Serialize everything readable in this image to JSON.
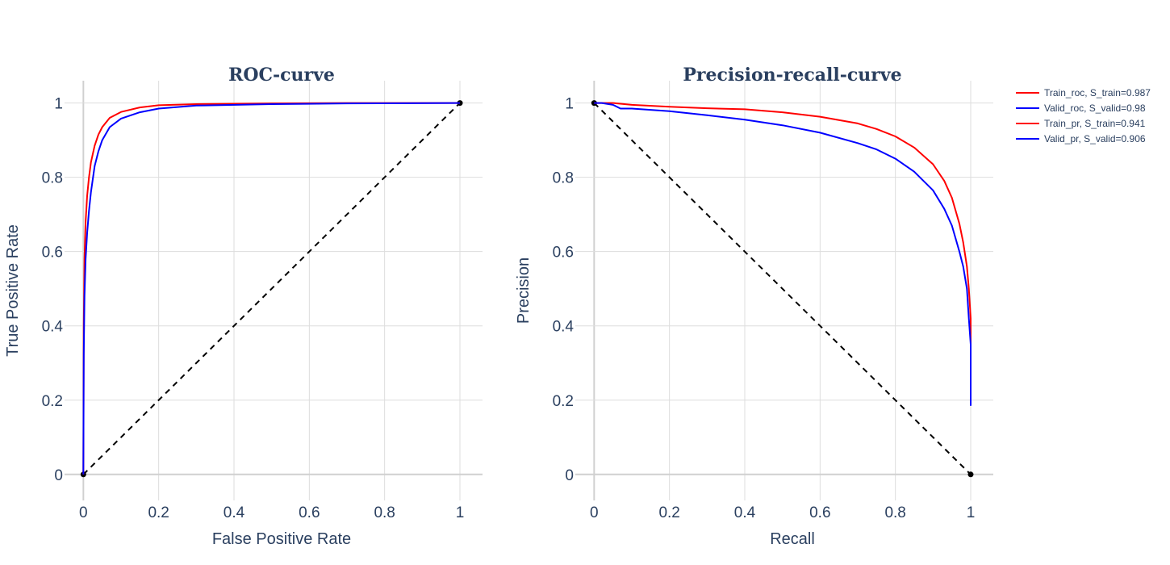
{
  "colors": {
    "train": "#ff0000",
    "valid": "#0000ff",
    "baseline": "#000000",
    "grid": "#dddddd",
    "text": "#2a3f5f"
  },
  "legend": [
    {
      "label": "Train_roc,   S_train=0.987",
      "color": "#ff0000"
    },
    {
      "label": "Valid_roc,   S_valid=0.98",
      "color": "#0000ff"
    },
    {
      "label": "Train_pr,   S_train=0.941",
      "color": "#ff0000"
    },
    {
      "label": "Valid_pr,   S_valid=0.906",
      "color": "#0000ff"
    }
  ],
  "chart_data": [
    {
      "type": "line",
      "title": "ROC-curve",
      "xlabel": "False Positive Rate",
      "ylabel": "True Positive Rate",
      "xlim": [
        -0.05,
        1.06
      ],
      "ylim": [
        -0.07,
        1.06
      ],
      "xticks": [
        0,
        0.2,
        0.4,
        0.6,
        0.8,
        1
      ],
      "xtick_labels": [
        "0",
        "0.2",
        "0.4",
        "0.6",
        "0.8",
        "1"
      ],
      "yticks": [
        0,
        0.2,
        0.4,
        0.6,
        0.8,
        1
      ],
      "ytick_labels": [
        "0",
        "0.2",
        "0.4",
        "0.6",
        "0.8",
        "1"
      ],
      "grid": true,
      "series": [
        {
          "name": "Train_roc",
          "color": "#ff0000",
          "x": [
            0,
            0.001,
            0.003,
            0.006,
            0.01,
            0.015,
            0.02,
            0.03,
            0.04,
            0.05,
            0.07,
            0.1,
            0.15,
            0.2,
            0.3,
            0.5,
            0.7,
            1
          ],
          "y": [
            0,
            0.4,
            0.58,
            0.68,
            0.75,
            0.8,
            0.84,
            0.885,
            0.915,
            0.935,
            0.96,
            0.976,
            0.988,
            0.994,
            0.997,
            0.999,
            1,
            1
          ]
        },
        {
          "name": "Valid_roc",
          "color": "#0000ff",
          "x": [
            0,
            0.001,
            0.003,
            0.006,
            0.01,
            0.015,
            0.02,
            0.03,
            0.04,
            0.05,
            0.07,
            0.1,
            0.15,
            0.2,
            0.3,
            0.5,
            0.7,
            1
          ],
          "y": [
            0,
            0.32,
            0.48,
            0.58,
            0.65,
            0.71,
            0.76,
            0.83,
            0.87,
            0.9,
            0.935,
            0.958,
            0.975,
            0.985,
            0.993,
            0.997,
            0.999,
            1
          ]
        },
        {
          "name": "baseline",
          "color": "#000000",
          "dash": true,
          "markers": true,
          "x": [
            0,
            1
          ],
          "y": [
            0,
            1
          ]
        }
      ]
    },
    {
      "type": "line",
      "title": "Precision-recall-curve",
      "xlabel": "Recall",
      "ylabel": "Precision",
      "xlim": [
        -0.05,
        1.06
      ],
      "ylim": [
        -0.07,
        1.06
      ],
      "xticks": [
        0,
        0.2,
        0.4,
        0.6,
        0.8,
        1
      ],
      "xtick_labels": [
        "0",
        "0.2",
        "0.4",
        "0.6",
        "0.8",
        "1"
      ],
      "yticks": [
        0,
        0.2,
        0.4,
        0.6,
        0.8,
        1
      ],
      "ytick_labels": [
        "0",
        "0.2",
        "0.4",
        "0.6",
        "0.8",
        "1"
      ],
      "grid": true,
      "series": [
        {
          "name": "Train_pr",
          "color": "#ff0000",
          "x": [
            0,
            0.05,
            0.1,
            0.2,
            0.3,
            0.4,
            0.5,
            0.6,
            0.7,
            0.75,
            0.8,
            0.85,
            0.9,
            0.93,
            0.95,
            0.97,
            0.98,
            0.99,
            0.995,
            1,
            1
          ],
          "y": [
            1,
            1,
            0.995,
            0.99,
            0.986,
            0.983,
            0.975,
            0.963,
            0.945,
            0.93,
            0.91,
            0.88,
            0.835,
            0.79,
            0.745,
            0.675,
            0.625,
            0.56,
            0.5,
            0.42,
            0.33
          ]
        },
        {
          "name": "Valid_pr",
          "color": "#0000ff",
          "x": [
            0,
            0.02,
            0.05,
            0.07,
            0.1,
            0.2,
            0.3,
            0.4,
            0.5,
            0.6,
            0.7,
            0.75,
            0.8,
            0.85,
            0.9,
            0.93,
            0.95,
            0.97,
            0.98,
            0.99,
            0.995,
            1,
            1
          ],
          "y": [
            1,
            1,
            0.995,
            0.985,
            0.985,
            0.978,
            0.967,
            0.955,
            0.94,
            0.92,
            0.892,
            0.875,
            0.85,
            0.815,
            0.765,
            0.715,
            0.67,
            0.6,
            0.56,
            0.5,
            0.42,
            0.35,
            0.185
          ]
        },
        {
          "name": "baseline",
          "color": "#000000",
          "dash": true,
          "markers": true,
          "x": [
            0,
            1
          ],
          "y": [
            1,
            0
          ]
        }
      ]
    }
  ]
}
